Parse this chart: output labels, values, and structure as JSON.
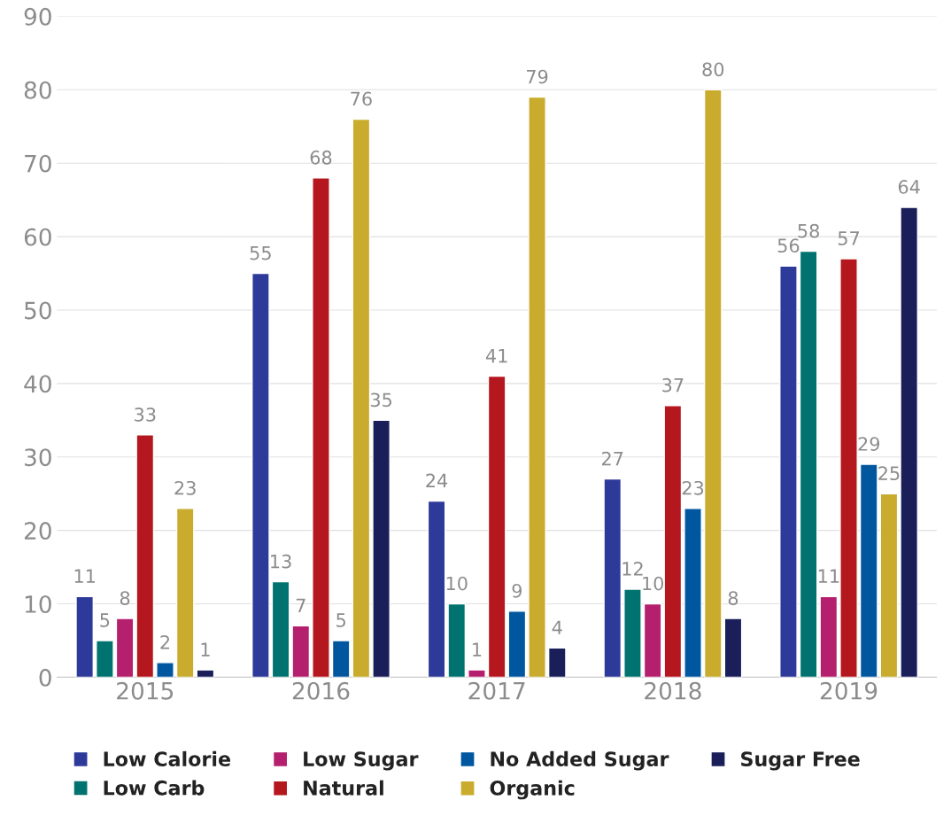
{
  "chart_data": {
    "type": "bar",
    "categories": [
      "2015",
      "2016",
      "2017",
      "2018",
      "2019"
    ],
    "series": [
      {
        "name": "Low Calorie",
        "color": "#2e3a9a",
        "values": [
          11,
          55,
          24,
          27,
          56
        ]
      },
      {
        "name": "Low Carb",
        "color": "#007370",
        "values": [
          5,
          13,
          10,
          12,
          58
        ]
      },
      {
        "name": "Low Sugar",
        "color": "#b5206e",
        "values": [
          8,
          7,
          1,
          10,
          11
        ]
      },
      {
        "name": "Natural",
        "color": "#b5171e",
        "values": [
          33,
          68,
          41,
          37,
          57
        ]
      },
      {
        "name": "No Added Sugar",
        "color": "#0057a0",
        "values": [
          2,
          5,
          9,
          23,
          29
        ]
      },
      {
        "name": "Organic",
        "color": "#c9ac2d",
        "values": [
          23,
          76,
          79,
          80,
          25
        ]
      },
      {
        "name": "Sugar Free",
        "color": "#1a1f5a",
        "values": [
          1,
          35,
          4,
          8,
          64
        ]
      }
    ],
    "ylim": [
      0,
      90
    ],
    "yticks": [
      0,
      10,
      20,
      30,
      40,
      50,
      60,
      70,
      80,
      90
    ],
    "grid": "y",
    "legend": "bottom",
    "data_labels": true
  }
}
